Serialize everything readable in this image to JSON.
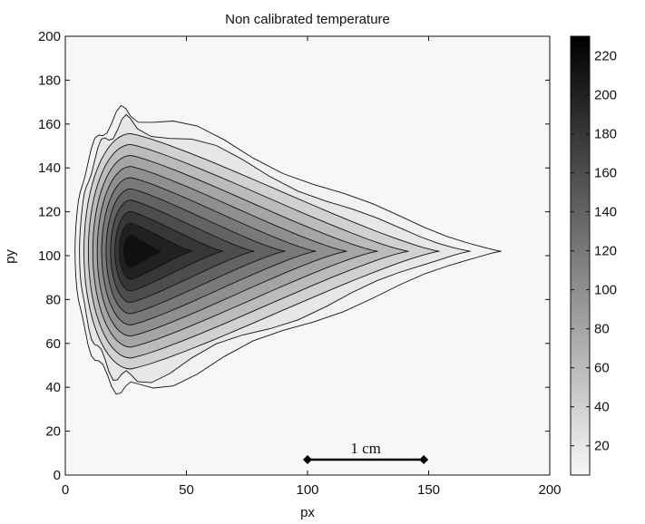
{
  "chart_data": {
    "type": "heatmap",
    "subtype": "filled-contour",
    "title": "Non calibrated temperature",
    "xlabel": "px",
    "ylabel": "py",
    "xlim": [
      0,
      200
    ],
    "ylim": [
      0,
      200
    ],
    "xticks": [
      0,
      50,
      100,
      150,
      200
    ],
    "yticks": [
      0,
      20,
      40,
      60,
      80,
      100,
      120,
      140,
      160,
      180,
      200
    ],
    "colormap": "gray-reversed",
    "color_low": "#f7f7f7",
    "color_high": "#000000",
    "colorbar": {
      "min": 5,
      "max": 230,
      "ticks": [
        20,
        40,
        60,
        80,
        100,
        120,
        140,
        160,
        180,
        200,
        220
      ]
    },
    "hotspot": {
      "x": 27,
      "y": 102,
      "value": 230
    },
    "plume_tip": {
      "x": 180,
      "y": 102
    },
    "contour_levels": [
      10,
      20,
      40,
      60,
      80,
      100,
      120,
      140,
      160,
      180,
      200,
      215
    ],
    "scale_bar": {
      "x_start": 100,
      "x_end": 148,
      "y": 7,
      "label": "1 cm"
    },
    "grid": false
  }
}
